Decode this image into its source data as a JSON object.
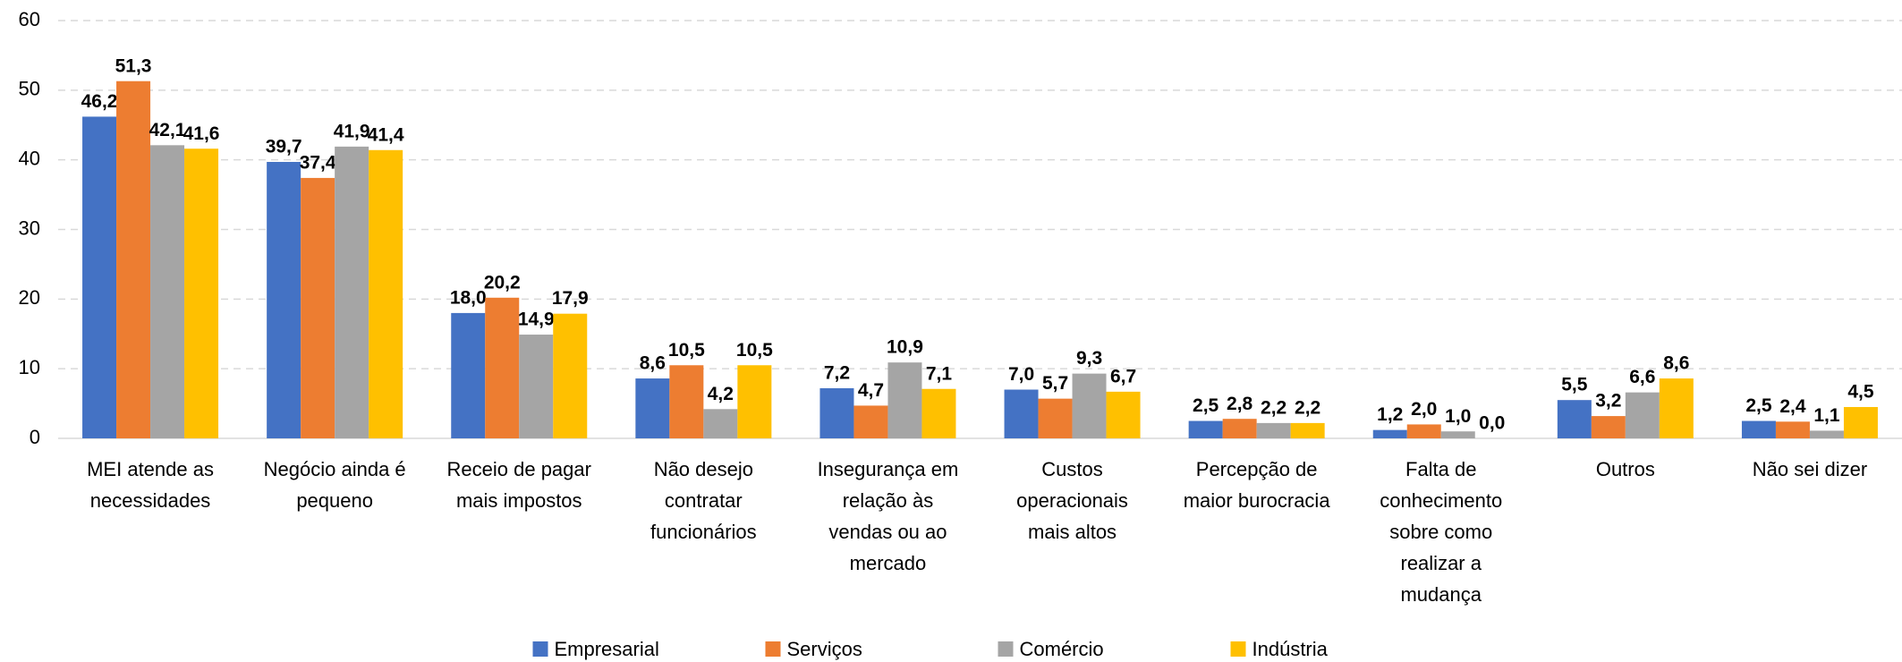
{
  "chart_data": {
    "type": "bar",
    "categories": [
      "MEI atende as necessidades",
      "Negócio ainda é pequeno",
      "Receio de pagar mais impostos",
      "Não desejo contratar funcionários",
      "Insegurança em relação às vendas ou ao mercado",
      "Custos operacionais mais altos",
      "Percepção de maior burocracia",
      "Falta de conhecimento sobre como realizar a mudança",
      "Outros",
      "Não sei dizer"
    ],
    "series": [
      {
        "name": "Empresarial",
        "color": "#4472c4",
        "values": [
          46.2,
          39.7,
          18.0,
          8.6,
          7.2,
          7.0,
          2.5,
          1.2,
          5.5,
          2.5
        ],
        "value_labels": [
          "46,2",
          "39,7",
          "18,0",
          "8,6",
          "7,2",
          "7,0",
          "2,5",
          "1,2",
          "5,5",
          "2,5"
        ]
      },
      {
        "name": "Serviços",
        "color": "#ed7d31",
        "values": [
          51.3,
          37.4,
          20.2,
          10.5,
          4.7,
          5.7,
          2.8,
          2.0,
          3.2,
          2.4
        ],
        "value_labels": [
          "51,3",
          "37,4",
          "20,2",
          "10,5",
          "4,7",
          "5,7",
          "2,8",
          "2,0",
          "3,2",
          "2,4"
        ]
      },
      {
        "name": "Comércio",
        "color": "#a5a5a5",
        "values": [
          42.1,
          41.9,
          14.9,
          4.2,
          10.9,
          9.3,
          2.2,
          1.0,
          6.6,
          1.1
        ],
        "value_labels": [
          "42,1",
          "41,9",
          "14,9",
          "4,2",
          "10,9",
          "9,3",
          "2,2",
          "1,0",
          "6,6",
          "1,1"
        ]
      },
      {
        "name": "Indústria",
        "color": "#ffc000",
        "values": [
          41.6,
          41.4,
          17.9,
          10.5,
          7.1,
          6.7,
          2.2,
          0.0,
          8.6,
          4.5
        ],
        "value_labels": [
          "41,6",
          "41,4",
          "17,9",
          "10,5",
          "7,1",
          "6,7",
          "2,2",
          "0,0",
          "8,6",
          "4,5"
        ]
      }
    ],
    "ylim": [
      0,
      60
    ],
    "yticks": [
      0,
      10,
      20,
      30,
      40,
      50,
      60
    ],
    "grid": true,
    "legend": "bottom"
  }
}
